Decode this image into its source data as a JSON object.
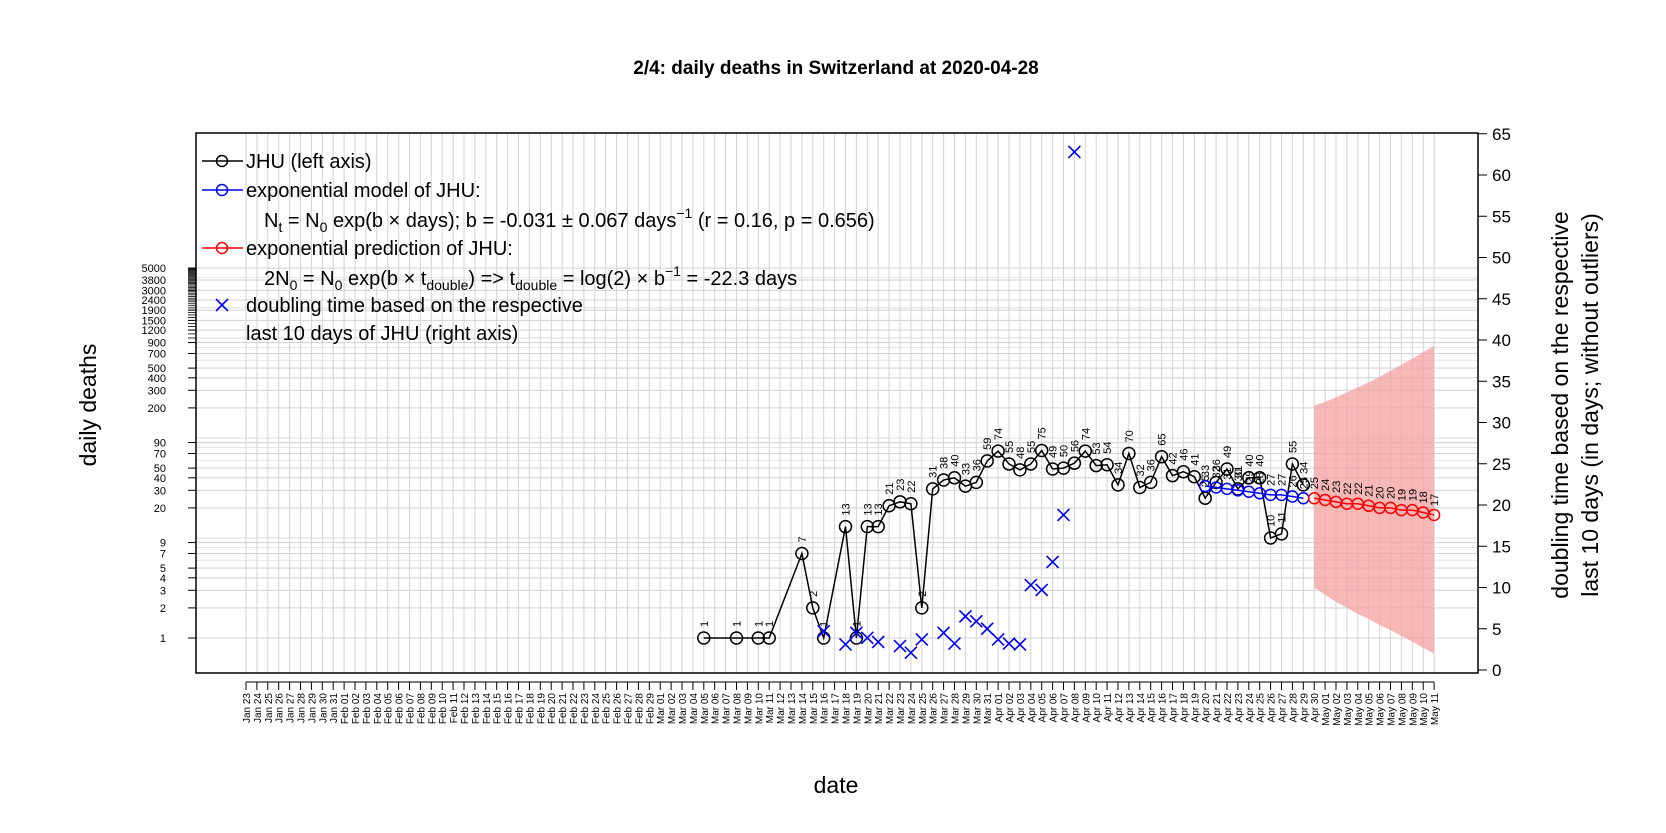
{
  "chart_data": {
    "type": "line",
    "title": "2/4: daily deaths in Switzerland at 2020-04-28",
    "xlabel": "date",
    "ylabel_left": "daily deaths",
    "ylabel_right_line1": "doubling time based on the respective",
    "ylabel_right_line2": "last 10 days (in days; without outliers)",
    "y_left_scale": "log",
    "y_left_ticks": [
      1,
      2,
      3,
      4,
      5,
      7,
      9,
      20,
      30,
      40,
      50,
      70,
      90,
      200,
      300,
      400,
      500,
      700,
      900,
      1200,
      1500,
      1900,
      2400,
      3000,
      3800,
      5000
    ],
    "y_right_ticks": [
      0,
      5,
      10,
      15,
      20,
      25,
      30,
      35,
      40,
      45,
      50,
      55,
      60,
      65
    ],
    "y_right_lim": [
      0,
      65
    ],
    "grid": true,
    "legend_position": "top-left",
    "x_tick_labels": [
      "Jan 23",
      "Jan 24",
      "Jan 25",
      "Jan 26",
      "Jan 27",
      "Jan 28",
      "Jan 29",
      "Jan 30",
      "Jan 31",
      "Feb 01",
      "Feb 02",
      "Feb 03",
      "Feb 04",
      "Feb 05",
      "Feb 06",
      "Feb 07",
      "Feb 08",
      "Feb 09",
      "Feb 10",
      "Feb 11",
      "Feb 12",
      "Feb 13",
      "Feb 14",
      "Feb 15",
      "Feb 16",
      "Feb 17",
      "Feb 18",
      "Feb 19",
      "Feb 20",
      "Feb 21",
      "Feb 22",
      "Feb 23",
      "Feb 24",
      "Feb 25",
      "Feb 26",
      "Feb 27",
      "Feb 28",
      "Feb 29",
      "Mar 01",
      "Mar 02",
      "Mar 03",
      "Mar 04",
      "Mar 05",
      "Mar 06",
      "Mar 07",
      "Mar 08",
      "Mar 09",
      "Mar 10",
      "Mar 11",
      "Mar 12",
      "Mar 13",
      "Mar 14",
      "Mar 15",
      "Mar 16",
      "Mar 17",
      "Mar 18",
      "Mar 19",
      "Mar 20",
      "Mar 21",
      "Mar 22",
      "Mar 23",
      "Mar 24",
      "Mar 25",
      "Mar 26",
      "Mar 27",
      "Mar 28",
      "Mar 29",
      "Mar 30",
      "Mar 31",
      "Apr 01",
      "Apr 02",
      "Apr 03",
      "Apr 04",
      "Apr 05",
      "Apr 06",
      "Apr 07",
      "Apr 08",
      "Apr 09",
      "Apr 10",
      "Apr 11",
      "Apr 12",
      "Apr 13",
      "Apr 14",
      "Apr 15",
      "Apr 16",
      "Apr 17",
      "Apr 18",
      "Apr 19",
      "Apr 20",
      "Apr 21",
      "Apr 22",
      "Apr 23",
      "Apr 24",
      "Apr 25",
      "Apr 26",
      "Apr 27",
      "Apr 28",
      "Apr 29",
      "Apr 30",
      "May 01",
      "May 02",
      "May 03",
      "May 04",
      "May 05",
      "May 06",
      "May 07",
      "May 08",
      "May 09",
      "May 10",
      "May 11"
    ],
    "weekend_labels": [
      "Jan 25",
      "Jan 26",
      "Feb 01",
      "Feb 02",
      "Feb 08",
      "Feb 09",
      "Feb 15",
      "Feb 16",
      "Feb 22",
      "Feb 23",
      "Feb 29",
      "Mar 01",
      "Mar 07",
      "Mar 08",
      "Mar 14",
      "Mar 15",
      "Mar 21",
      "Mar 22",
      "Mar 28",
      "Mar 29",
      "Apr 04",
      "Apr 05",
      "Apr 11",
      "Apr 12",
      "Apr 18",
      "Apr 19",
      "Apr 25",
      "Apr 26",
      "May 02",
      "May 03",
      "May 09",
      "May 10"
    ],
    "colors": {
      "observed": "#000000",
      "model": "#0000ff",
      "prediction": "#ff0000",
      "band": "#f4a0a0",
      "doubling": "#0000ff",
      "weekend_label": "#cc8800",
      "grid": "#d3d3d3"
    },
    "series": [
      {
        "name": "JHU (left axis)",
        "points": [
          {
            "x": "Mar 05",
            "y": 1
          },
          {
            "x": "Mar 08",
            "y": 1
          },
          {
            "x": "Mar 10",
            "y": 1
          },
          {
            "x": "Mar 11",
            "y": 1
          },
          {
            "x": "Mar 14",
            "y": 7
          },
          {
            "x": "Mar 15",
            "y": 2
          },
          {
            "x": "Mar 16",
            "y": 1
          },
          {
            "x": "Mar 18",
            "y": 13
          },
          {
            "x": "Mar 19",
            "y": 1
          },
          {
            "x": "Mar 20",
            "y": 13
          },
          {
            "x": "Mar 21",
            "y": 13
          },
          {
            "x": "Mar 22",
            "y": 21
          },
          {
            "x": "Mar 23",
            "y": 23
          },
          {
            "x": "Mar 24",
            "y": 22
          },
          {
            "x": "Mar 25",
            "y": 2
          },
          {
            "x": "Mar 26",
            "y": 31
          },
          {
            "x": "Mar 27",
            "y": 38
          },
          {
            "x": "Mar 28",
            "y": 40
          },
          {
            "x": "Mar 29",
            "y": 33
          },
          {
            "x": "Mar 30",
            "y": 36
          },
          {
            "x": "Mar 31",
            "y": 59
          },
          {
            "x": "Apr 01",
            "y": 74
          },
          {
            "x": "Apr 02",
            "y": 55
          },
          {
            "x": "Apr 03",
            "y": 48
          },
          {
            "x": "Apr 04",
            "y": 55
          },
          {
            "x": "Apr 05",
            "y": 75
          },
          {
            "x": "Apr 06",
            "y": 49
          },
          {
            "x": "Apr 07",
            "y": 50
          },
          {
            "x": "Apr 08",
            "y": 56
          },
          {
            "x": "Apr 09",
            "y": 74
          },
          {
            "x": "Apr 10",
            "y": 53
          },
          {
            "x": "Apr 11",
            "y": 54
          },
          {
            "x": "Apr 12",
            "y": 34
          },
          {
            "x": "Apr 13",
            "y": 70
          },
          {
            "x": "Apr 14",
            "y": 32
          },
          {
            "x": "Apr 15",
            "y": 36
          },
          {
            "x": "Apr 16",
            "y": 65
          },
          {
            "x": "Apr 17",
            "y": 42
          },
          {
            "x": "Apr 18",
            "y": 46
          },
          {
            "x": "Apr 19",
            "y": 41
          },
          {
            "x": "Apr 20",
            "y": 25
          },
          {
            "x": "Apr 21",
            "y": 36
          },
          {
            "x": "Apr 22",
            "y": 49
          },
          {
            "x": "Apr 23",
            "y": 31
          },
          {
            "x": "Apr 24",
            "y": 40
          },
          {
            "x": "Apr 25",
            "y": 40
          },
          {
            "x": "Apr 26",
            "y": 10
          },
          {
            "x": "Apr 27",
            "y": 11
          },
          {
            "x": "Apr 28",
            "y": 55
          },
          {
            "x": "Apr 29",
            "y": 34
          }
        ]
      },
      {
        "name": "exponential model of JHU:",
        "points": [
          {
            "x": "Apr 20",
            "y": 33
          },
          {
            "x": "Apr 21",
            "y": 32
          },
          {
            "x": "Apr 22",
            "y": 31
          },
          {
            "x": "Apr 23",
            "y": 30
          },
          {
            "x": "Apr 24",
            "y": 29
          },
          {
            "x": "Apr 25",
            "y": 28
          },
          {
            "x": "Apr 26",
            "y": 27
          },
          {
            "x": "Apr 27",
            "y": 27
          },
          {
            "x": "Apr 28",
            "y": 26
          },
          {
            "x": "Apr 29",
            "y": 25
          }
        ]
      },
      {
        "name": "exponential prediction of JHU:",
        "points": [
          {
            "x": "Apr 30",
            "y": 25
          },
          {
            "x": "May 01",
            "y": 24
          },
          {
            "x": "May 02",
            "y": 23
          },
          {
            "x": "May 03",
            "y": 22
          },
          {
            "x": "May 04",
            "y": 22
          },
          {
            "x": "May 05",
            "y": 21
          },
          {
            "x": "May 06",
            "y": 20
          },
          {
            "x": "May 07",
            "y": 20
          },
          {
            "x": "May 08",
            "y": 19
          },
          {
            "x": "May 09",
            "y": 19
          },
          {
            "x": "May 10",
            "y": 18
          },
          {
            "x": "May 11",
            "y": 17
          }
        ],
        "band_upper": [
          210,
          230,
          255,
          285,
          320,
          360,
          410,
          470,
          540,
          620,
          720,
          840
        ],
        "band_lower": [
          3.2,
          2.7,
          2.3,
          2.0,
          1.75,
          1.55,
          1.35,
          1.2,
          1.05,
          0.92,
          0.8,
          0.7
        ]
      },
      {
        "name": "doubling time based on the respective",
        "axis": "right",
        "points": [
          {
            "x": "Mar 16",
            "y": 4.7
          },
          {
            "x": "Mar 18",
            "y": 3.1
          },
          {
            "x": "Mar 19",
            "y": 4.5
          },
          {
            "x": "Mar 20",
            "y": 3.9
          },
          {
            "x": "Mar 21",
            "y": 3.4
          },
          {
            "x": "Mar 23",
            "y": 2.9
          },
          {
            "x": "Mar 24",
            "y": 2.1
          },
          {
            "x": "Mar 25",
            "y": 3.7
          },
          {
            "x": "Mar 27",
            "y": 4.5
          },
          {
            "x": "Mar 28",
            "y": 3.2
          },
          {
            "x": "Mar 29",
            "y": 6.5
          },
          {
            "x": "Mar 30",
            "y": 5.9
          },
          {
            "x": "Mar 31",
            "y": 5.0
          },
          {
            "x": "Apr 01",
            "y": 3.7
          },
          {
            "x": "Apr 02",
            "y": 3.2
          },
          {
            "x": "Apr 03",
            "y": 3.1
          },
          {
            "x": "Apr 04",
            "y": 10.3
          },
          {
            "x": "Apr 05",
            "y": 9.7
          },
          {
            "x": "Apr 06",
            "y": 13.1
          },
          {
            "x": "Apr 07",
            "y": 18.8
          },
          {
            "x": "Apr 08",
            "y": 62.8
          }
        ]
      }
    ],
    "legend": {
      "item1": "JHU (left axis)",
      "item2": "exponential model of JHU:",
      "item2_formula": {
        "a": "N",
        "b": "t",
        "c": " = N",
        "d": "0",
        "e": " exp(b × days); b = -0.031 ± 0.067 days",
        "f": "−1",
        "g": " (r = 0.16, p = 0.656)"
      },
      "item3": "exponential prediction of JHU:",
      "item3_formula": {
        "a": "2N",
        "b": "0",
        "c": " = N",
        "d": "0",
        "e": " exp(b × t",
        "f": "double",
        "g": ") => t",
        "h": "double",
        "i": " = log(2) × b",
        "j": "−1",
        "k": " = -22.3 days"
      },
      "item4_line1": "doubling time based on the respective",
      "item4_line2": "last 10 days of JHU (right axis)"
    }
  }
}
